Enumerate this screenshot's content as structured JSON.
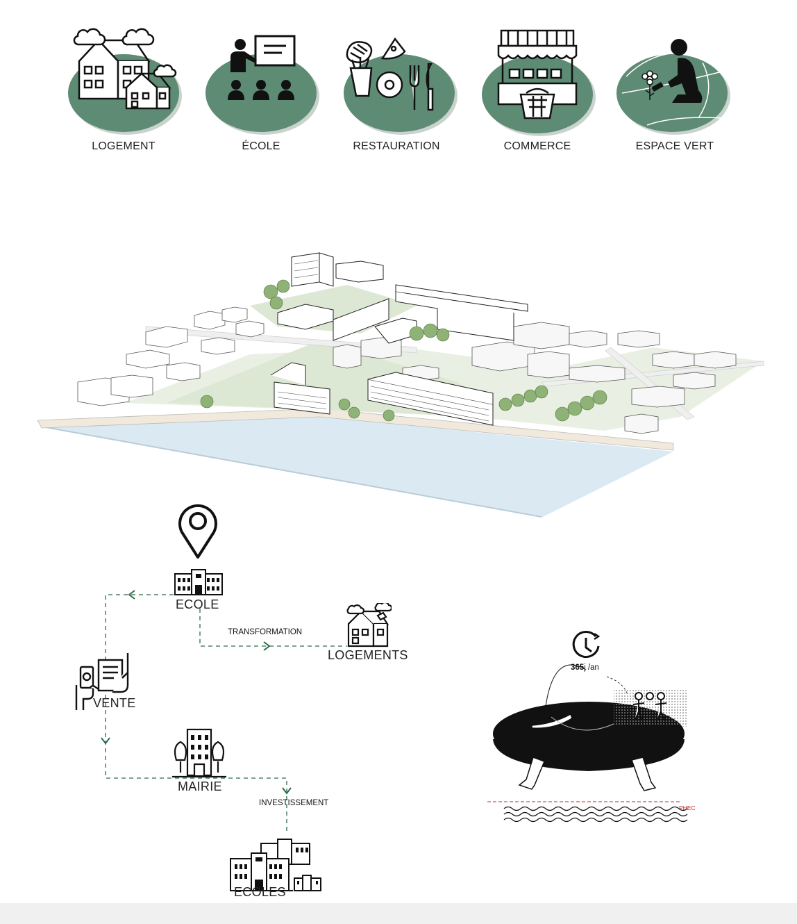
{
  "categories": [
    {
      "label": "LOGEMENT",
      "icon": "houses-icon"
    },
    {
      "label": "ÉCOLE",
      "icon": "teacher-class-icon"
    },
    {
      "label": "RESTAURATION",
      "icon": "food-cutlery-icon"
    },
    {
      "label": "COMMERCE",
      "icon": "market-stall-icon"
    },
    {
      "label": "ESPACE VERT",
      "icon": "gardener-icon"
    }
  ],
  "flow": {
    "ecole": "ECOLE",
    "transformation": "TRANSFORMATION",
    "logements": "LOGEMENTS",
    "vente": "VENTE",
    "mairie": "MAIRIE",
    "investissement": "INVESTISSEMENT",
    "ecoles": "ECOLES"
  },
  "platform": {
    "days": "365",
    "unit": "j /an",
    "flood_level": "PHEC"
  },
  "colors": {
    "accent_green": "#5e8b74",
    "flow_green": "#2e6b4c",
    "water": "#dbe9f3",
    "park": "#dde8d4",
    "flood_red": "#c0242b"
  }
}
